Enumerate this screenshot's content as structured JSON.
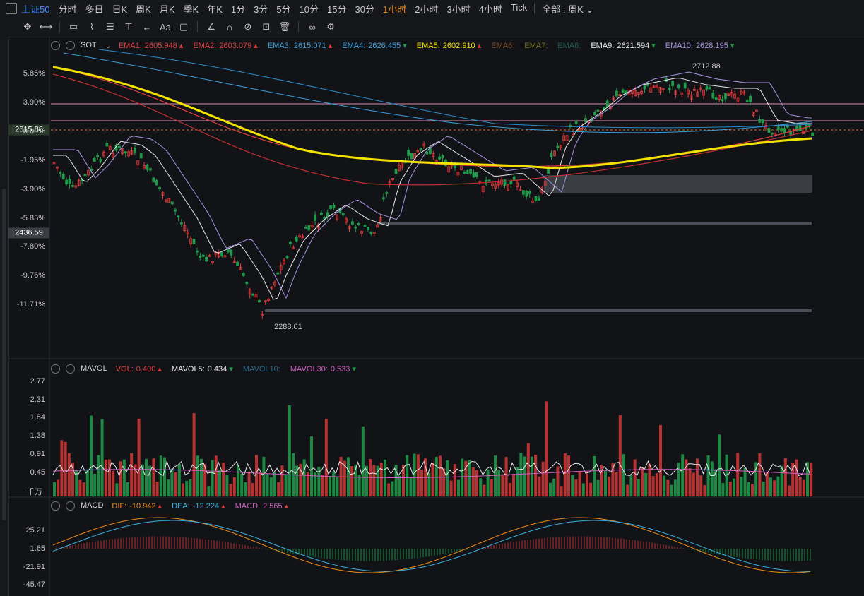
{
  "topbar": {
    "symbol": "上证50",
    "periods": [
      "分时",
      "多日",
      "日K",
      "周K",
      "月K",
      "季K",
      "年K",
      "1分",
      "3分",
      "5分",
      "10分",
      "15分",
      "30分",
      "1小时",
      "2小时",
      "3小时",
      "4小时",
      "Tick"
    ],
    "active_period": "1小时",
    "range_label": "全部",
    "range_value": "周K"
  },
  "toolbar": {
    "tools": [
      "move-icon",
      "line-tool-icon",
      "rect-tool-icon",
      "fib-tool-icon",
      "pattern-tool-icon",
      "vertical-line-icon",
      "arrow-tool-icon",
      "text-tool-icon",
      "comment-icon",
      "ruler-icon",
      "magnet-icon",
      "hide-icon",
      "lock-icon",
      "trash-icon",
      "link-icon",
      "settings-icon"
    ],
    "text_tool_label": "Aa"
  },
  "main": {
    "indicator": "SOT",
    "emas": [
      {
        "name": "EMA1:",
        "value": "2605.948",
        "dir": "up",
        "color": "#e04040"
      },
      {
        "name": "EMA2:",
        "value": "2603.079",
        "dir": "up",
        "color": "#e04040"
      },
      {
        "name": "EMA3:",
        "value": "2615.071",
        "dir": "up",
        "color": "#3aa0e0"
      },
      {
        "name": "EMA4:",
        "value": "2626.455",
        "dir": "down",
        "color": "#3aa0e0"
      },
      {
        "name": "EMA5:",
        "value": "2602.910",
        "dir": "up",
        "color": "#f2e200"
      },
      {
        "name": "EMA6:",
        "value": "",
        "dir": "",
        "color": "#7a4a2a"
      },
      {
        "name": "EMA7:",
        "value": "",
        "dir": "",
        "color": "#6e6a20"
      },
      {
        "name": "EMA8:",
        "value": "",
        "dir": "",
        "color": "#205a50"
      },
      {
        "name": "EMA9:",
        "value": "2621.594",
        "dir": "down",
        "color": "#e8e8ea"
      },
      {
        "name": "EMA10:",
        "value": "2628.195",
        "dir": "down",
        "color": "#a496e0"
      }
    ],
    "y_ticks": [
      "5.85%",
      "3.90%",
      "0.00%",
      "-1.95%",
      "-3.90%",
      "-5.85%",
      "-7.80%",
      "-9.76%",
      "-11.71%"
    ],
    "current_price": "2615.88",
    "marker_price": "2436.59",
    "high_label": "2712.88",
    "low_label": "2288.01"
  },
  "volume": {
    "indicator": "MAVOL",
    "items": [
      {
        "name": "VOL:",
        "value": "0.400",
        "dir": "up",
        "color": "#e04040"
      },
      {
        "name": "MAVOL5:",
        "value": "0.434",
        "dir": "down",
        "color": "#e8e8ea"
      },
      {
        "name": "MAVOL10:",
        "value": "",
        "dir": "",
        "color": "#2a6a8a"
      },
      {
        "name": "MAVOL30:",
        "value": "0.533",
        "dir": "down",
        "color": "#d060c0"
      }
    ],
    "y_ticks": [
      "2.77",
      "2.31",
      "1.84",
      "1.38",
      "0.91",
      "0.45"
    ],
    "unit": "千万"
  },
  "macd": {
    "indicator": "MACD",
    "items": [
      {
        "name": "DIF:",
        "value": "-10.942",
        "dir": "up",
        "color": "#f08c1a"
      },
      {
        "name": "DEA:",
        "value": "-12.224",
        "dir": "up",
        "color": "#3ab0e0"
      },
      {
        "name": "MACD:",
        "value": "2.565",
        "dir": "up",
        "color": "#d060c0"
      }
    ],
    "y_ticks": [
      "25.21",
      "1.65",
      "-21.91",
      "-45.47"
    ]
  },
  "colors": {
    "up": "#e23b3b",
    "down": "#1f9a4a",
    "bg": "#121317"
  }
}
